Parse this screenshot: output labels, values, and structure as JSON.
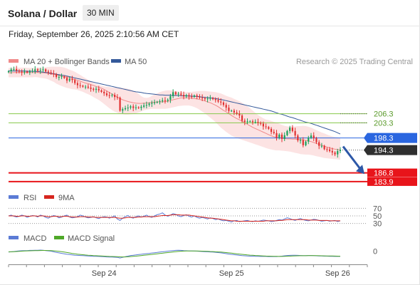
{
  "header": {
    "title": "Solana / Dollar",
    "interval": "30 MIN",
    "datetime": "Friday, September 26, 2025 2:10:56 AM CET"
  },
  "colors": {
    "candle_up": "#18a058",
    "candle_down": "#e03030",
    "ma20": "#f08a8a",
    "bollinger_fill": "#fbdcdc",
    "ma50": "#34599a",
    "green_level": "#86c84a",
    "blue_level": "#2a66e0",
    "red_level": "#e8141a",
    "current_price_bg": "#2f2f2f",
    "arrow": "#2d58a8",
    "rsi": "#5b7bd5",
    "rsi_9ma": "#d6261f",
    "macd": "#5b7bd5",
    "macd_signal": "#4fa829"
  },
  "chart_data": [
    {
      "type": "candlestick",
      "legend": [
        {
          "name": "MA 20 + Bollinger Bands",
          "color": "#f08a8a"
        },
        {
          "name": "MA 50",
          "color": "#34599a"
        }
      ],
      "legend_position": "top-left",
      "credit": "Research © 2025 Trading Central",
      "ylim": [
        182,
        221
      ],
      "x_tick_labels": [
        "Sep 24",
        "Sep 25",
        "Sep 26"
      ],
      "current_price": 194.3,
      "levels": [
        {
          "value": 206.3,
          "label": "206.3",
          "kind": "resistance",
          "color": "#86c84a"
        },
        {
          "value": 203.3,
          "label": "203.3",
          "kind": "resistance",
          "color": "#86c84a"
        },
        {
          "value": 198.3,
          "label": "198.3",
          "kind": "pivot",
          "color": "#2a66e0"
        },
        {
          "value": 186.8,
          "label": "186.8",
          "kind": "support",
          "color": "#e8141a"
        },
        {
          "value": 183.9,
          "label": "183.9",
          "kind": "support",
          "color": "#e8141a"
        }
      ],
      "forecast_arrow": {
        "from": 195.5,
        "to": 186.4
      },
      "close": [
        220.3,
        220.9,
        221.0,
        220.5,
        220.2,
        219.9,
        220.2,
        219.9,
        220.2,
        220.4,
        220.9,
        220.5,
        220.7,
        220.9,
        220.2,
        219.9,
        219.6,
        219.3,
        218.4,
        218.4,
        218.6,
        218.1,
        217.2,
        217.7,
        217.4,
        216.4,
        215.7,
        215.5,
        215.2,
        215.2,
        214.9,
        214.5,
        214.2,
        214.5,
        214.0,
        213.5,
        213.0,
        212.4,
        212.3,
        212.5,
        211.8,
        211.6,
        207.3,
        207.8,
        208.1,
        208.3,
        208.7,
        208.2,
        208.4,
        208.2,
        208.6,
        209.0,
        209.2,
        209.6,
        209.9,
        210.0,
        210.2,
        210.4,
        210.7,
        210.6,
        210.9,
        212.1,
        213.4,
        212.7,
        212.9,
        212.5,
        212.0,
        212.4,
        212.0,
        211.9,
        212.3,
        211.9,
        211.6,
        211.4,
        211.1,
        211.3,
        211.5,
        211.1,
        210.8,
        210.3,
        210.0,
        209.2,
        208.3,
        207.2,
        207.3,
        206.7,
        206.3,
        205.7,
        204.0,
        203.6,
        203.8,
        203.8,
        203.5,
        203.6,
        203.3,
        203.0,
        202.1,
        201.9,
        201.3,
        200.3,
        199.9,
        198.4,
        199.4,
        198.0,
        199.2,
        200.6,
        201.7,
        200.6,
        199.1,
        197.5,
        197.6,
        195.9,
        197.1,
        198.4,
        199.1,
        198.2,
        196.9,
        195.7,
        195.7,
        194.6,
        194.5,
        194.0,
        193.5,
        192.9,
        194.0,
        194.3
      ],
      "ma20": [
        219.8,
        219.8,
        219.9,
        219.9,
        219.9,
        219.9,
        219.9,
        219.9,
        219.9,
        219.9,
        219.9,
        219.9,
        219.8,
        219.8,
        219.7,
        219.6,
        219.4,
        219.3,
        219.1,
        218.9,
        218.7,
        218.5,
        218.3,
        218.1,
        217.8,
        217.6,
        217.3,
        217.0,
        216.7,
        216.4,
        216.2,
        215.9,
        215.6,
        215.3,
        215.0,
        214.7,
        214.3,
        213.8,
        213.3,
        212.8,
        212.3,
        211.8,
        211.3,
        210.9,
        210.6,
        210.3,
        210.1,
        209.9,
        209.8,
        209.7,
        209.7,
        209.8,
        209.8,
        209.9,
        210.0,
        210.1,
        210.2,
        210.2,
        210.2,
        210.3,
        210.4,
        210.6,
        210.9,
        211.1,
        211.3,
        211.5,
        211.5,
        211.5,
        211.5,
        211.4,
        211.3,
        211.2,
        211.0,
        210.8,
        210.5,
        210.2,
        209.9,
        209.5,
        209.1,
        208.6,
        208.0,
        207.4,
        206.9,
        206.3,
        205.7,
        205.2,
        204.7,
        204.3,
        203.8,
        203.3,
        202.8,
        202.3,
        201.8,
        201.4,
        201.0,
        200.6,
        200.2,
        199.8,
        199.4,
        199.0,
        198.7,
        198.5,
        198.3,
        198.2,
        198.1,
        198.0,
        198.0,
        197.9,
        197.9,
        197.8,
        197.8,
        197.7,
        197.5,
        197.3,
        197.1,
        196.8,
        196.5,
        196.2,
        195.9,
        195.6,
        195.3,
        195.0,
        194.8,
        194.6,
        194.5,
        194.3
      ],
      "bollinger_upper": [
        221.4,
        221.4,
        221.5,
        221.5,
        221.5,
        221.5,
        221.5,
        221.4,
        221.4,
        221.4,
        221.4,
        221.4,
        221.5,
        221.5,
        221.6,
        221.7,
        221.8,
        221.8,
        221.8,
        221.8,
        221.7,
        221.5,
        221.2,
        220.8,
        220.5,
        220.1,
        219.6,
        219.1,
        218.5,
        218.0,
        217.5,
        217.0,
        216.5,
        216.1,
        215.8,
        215.5,
        215.3,
        215.2,
        215.1,
        214.9,
        214.9,
        214.9,
        214.9,
        214.8,
        214.7,
        214.5,
        214.3,
        213.9,
        213.4,
        212.8,
        212.1,
        211.6,
        211.5,
        211.7,
        212.2,
        212.6,
        213.0,
        213.4,
        213.7,
        213.9,
        214.0,
        214.0,
        213.9,
        213.7,
        213.6,
        213.5,
        213.4,
        213.4,
        213.4,
        213.5,
        213.6,
        213.7,
        213.8,
        213.8,
        213.8,
        213.7,
        213.6,
        213.5,
        213.4,
        213.2,
        213.0,
        212.6,
        212.2,
        211.9,
        211.6,
        211.2,
        210.8,
        210.4,
        209.9,
        209.3,
        208.7,
        208.1,
        207.3,
        206.6,
        205.9,
        205.3,
        204.8,
        204.4,
        204.2,
        203.9,
        203.6,
        203.3,
        203.0,
        202.6,
        202.3,
        202.1,
        202.0,
        202.1,
        202.1,
        202.2,
        202.2,
        202.3,
        202.2,
        202.0,
        201.7,
        201.3,
        200.9,
        200.5,
        200.1,
        199.8,
        199.4,
        199.1,
        198.8,
        198.6,
        198.5,
        198.4
      ],
      "bollinger_lower": [
        218.3,
        218.3,
        218.3,
        218.3,
        218.3,
        218.3,
        218.3,
        218.3,
        218.3,
        218.3,
        218.4,
        218.3,
        218.1,
        218.0,
        217.9,
        217.6,
        217.2,
        216.8,
        216.2,
        215.8,
        215.4,
        215.1,
        214.8,
        214.6,
        214.4,
        214.3,
        214.1,
        213.8,
        213.5,
        213.1,
        212.7,
        212.3,
        211.8,
        211.3,
        210.8,
        210.2,
        209.5,
        208.8,
        208.1,
        207.5,
        207.0,
        206.6,
        206.3,
        206.1,
        206.0,
        206.0,
        206.1,
        206.2,
        206.4,
        206.7,
        207.0,
        207.4,
        207.6,
        207.8,
        207.9,
        207.9,
        207.9,
        207.9,
        207.9,
        207.9,
        208.0,
        208.2,
        208.4,
        208.6,
        208.8,
        208.9,
        209.0,
        209.0,
        209.0,
        208.8,
        208.5,
        208.1,
        207.6,
        207.0,
        206.4,
        205.7,
        205.0,
        204.3,
        203.5,
        202.6,
        201.7,
        201.0,
        200.3,
        199.7,
        199.1,
        198.6,
        198.3,
        198.0,
        197.7,
        197.4,
        197.1,
        196.8,
        196.5,
        196.2,
        195.9,
        195.6,
        195.3,
        195.0,
        194.7,
        194.5,
        194.3,
        194.2,
        194.2,
        194.1,
        194.0,
        193.9,
        193.8,
        193.6,
        193.4,
        193.2,
        193.0,
        192.9,
        192.8,
        192.8,
        192.7,
        192.5,
        192.3,
        192.1,
        191.9,
        191.7,
        191.6,
        191.5,
        191.4,
        191.3,
        191.2,
        191.1
      ],
      "ma50": [
        220.4,
        220.4,
        220.4,
        220.4,
        220.4,
        220.4,
        220.4,
        220.3,
        220.3,
        220.3,
        220.2,
        220.2,
        220.1,
        220.0,
        219.9,
        219.8,
        219.6,
        219.5,
        219.3,
        219.2,
        219.0,
        218.9,
        218.7,
        218.5,
        218.3,
        218.1,
        217.9,
        217.7,
        217.5,
        217.3,
        217.1,
        216.9,
        216.7,
        216.5,
        216.3,
        216.1,
        215.9,
        215.7,
        215.5,
        215.3,
        215.1,
        214.9,
        214.7,
        214.5,
        214.3,
        214.1,
        213.9,
        213.7,
        213.5,
        213.4,
        213.3,
        213.1,
        213.0,
        212.9,
        212.8,
        212.7,
        212.6,
        212.5,
        212.5,
        212.4,
        212.4,
        212.4,
        212.3,
        212.3,
        212.3,
        212.2,
        212.2,
        212.2,
        212.1,
        212.1,
        212.0,
        212.0,
        211.9,
        211.8,
        211.7,
        211.6,
        211.5,
        211.4,
        211.3,
        211.1,
        211.0,
        210.8,
        210.6,
        210.4,
        210.2,
        210.0,
        209.8,
        209.6,
        209.4,
        209.2,
        209.0,
        208.8,
        208.6,
        208.4,
        208.2,
        208.0,
        207.8,
        207.6,
        207.4,
        207.2,
        206.9,
        206.6,
        206.3,
        206.1,
        205.8,
        205.5,
        205.2,
        205.0,
        204.7,
        204.4,
        204.1,
        203.8,
        203.5,
        203.3,
        203.1,
        202.8,
        202.5,
        202.2,
        201.9,
        201.6,
        201.3,
        201.0,
        200.7,
        200.4,
        200.0,
        199.6
      ]
    },
    {
      "type": "line",
      "legend": [
        {
          "name": "RSI",
          "color": "#5b7bd5"
        },
        {
          "name": "9MA",
          "color": "#d6261f"
        }
      ],
      "legend_position": "top-left",
      "ylim": [
        20,
        80
      ],
      "y_ticks": [
        30,
        50,
        70
      ],
      "rsi": [
        50,
        52,
        49,
        47,
        49,
        52,
        50,
        46,
        49,
        51,
        50,
        47,
        52,
        50,
        46,
        44,
        48,
        51,
        49,
        45,
        47,
        50,
        52,
        47,
        45,
        46,
        48,
        52,
        50,
        47,
        45,
        46,
        48,
        45,
        43,
        46,
        48,
        47,
        44,
        47,
        50,
        42,
        38,
        44,
        48,
        51,
        46,
        44,
        48,
        50,
        47,
        49,
        52,
        48,
        46,
        50,
        53,
        55,
        58,
        52,
        49,
        52,
        56,
        54,
        50,
        48,
        51,
        53,
        49,
        47,
        50,
        46,
        44,
        46,
        44,
        42,
        45,
        43,
        40,
        42,
        39,
        37,
        38,
        36,
        34,
        37,
        38,
        35,
        36,
        37,
        38,
        36,
        35,
        37,
        36,
        37,
        39,
        38,
        37,
        35,
        36,
        38,
        40,
        39,
        42,
        45,
        43,
        40,
        38,
        41,
        43,
        40,
        38,
        37,
        39,
        41,
        40,
        38,
        36,
        37,
        38,
        36,
        37,
        38,
        35,
        37
      ],
      "rsi_9ma": [
        50,
        50,
        50,
        49,
        49,
        50,
        50,
        49,
        49,
        50,
        50,
        49,
        50,
        50,
        49,
        48,
        48,
        49,
        49,
        48,
        48,
        49,
        49,
        48,
        47,
        47,
        47,
        48,
        48,
        48,
        47,
        47,
        47,
        46,
        46,
        46,
        46,
        46,
        46,
        46,
        46,
        45,
        44,
        44,
        45,
        46,
        46,
        46,
        46,
        47,
        47,
        48,
        48,
        48,
        48,
        48,
        49,
        50,
        51,
        51,
        51,
        52,
        53,
        53,
        53,
        52,
        52,
        52,
        52,
        51,
        50,
        49,
        48,
        47,
        46,
        45,
        44,
        44,
        43,
        42,
        41,
        40,
        39,
        38,
        37,
        37,
        36,
        36,
        36,
        36,
        36,
        36,
        36,
        36,
        36,
        36,
        36,
        37,
        37,
        37,
        37,
        37,
        38,
        38,
        39,
        40,
        40,
        40,
        40,
        40,
        40,
        40,
        40,
        39,
        39,
        39,
        39,
        38,
        38,
        38,
        38,
        37,
        37,
        37,
        37,
        37
      ]
    },
    {
      "type": "line",
      "legend": [
        {
          "name": "MACD",
          "color": "#5b7bd5"
        },
        {
          "name": "MACD Signal",
          "color": "#4fa829"
        }
      ],
      "legend_position": "top-left",
      "ylim": [
        -3.8,
        2.2
      ],
      "y_ticks": [
        0
      ],
      "macd": [
        -0.3,
        -0.2,
        -0.1,
        0.0,
        0.1,
        0.15,
        0.2,
        0.2,
        0.25,
        0.25,
        0.3,
        0.3,
        0.35,
        0.3,
        0.2,
        0.1,
        0.0,
        -0.2,
        -0.4,
        -0.55,
        -0.7,
        -0.85,
        -1.0,
        -1.1,
        -1.2,
        -1.3,
        -1.35,
        -1.4,
        -1.45,
        -1.5,
        -1.55,
        -1.6,
        -1.65,
        -1.65,
        -1.7,
        -1.75,
        -1.8,
        -1.85,
        -1.9,
        -1.9,
        -1.95,
        -2.0,
        -2.2,
        -2.0,
        -1.8,
        -1.6,
        -1.4,
        -1.3,
        -1.2,
        -1.1,
        -1.0,
        -0.9,
        -0.8,
        -0.7,
        -0.6,
        -0.5,
        -0.4,
        -0.3,
        -0.2,
        -0.1,
        0.0,
        0.1,
        0.2,
        0.25,
        0.3,
        0.25,
        0.2,
        0.15,
        0.1,
        0.1,
        0.05,
        0.0,
        -0.05,
        -0.1,
        -0.15,
        -0.2,
        -0.25,
        -0.3,
        -0.35,
        -0.45,
        -0.55,
        -0.65,
        -0.8,
        -0.95,
        -1.05,
        -1.15,
        -1.25,
        -1.35,
        -1.45,
        -1.5,
        -1.55,
        -1.6,
        -1.6,
        -1.65,
        -1.65,
        -1.7,
        -1.7,
        -1.7,
        -1.75,
        -1.75,
        -1.75,
        -1.75,
        -1.7,
        -1.6,
        -1.5,
        -1.4,
        -1.35,
        -1.3,
        -1.3,
        -1.35,
        -1.4,
        -1.45,
        -1.45,
        -1.4,
        -1.4,
        -1.45,
        -1.5,
        -1.55,
        -1.55,
        -1.6,
        -1.6,
        -1.65,
        -1.65,
        -1.7,
        -1.7,
        -1.7
      ],
      "macd_signal": [
        -0.2,
        -0.2,
        -0.15,
        -0.1,
        -0.05,
        0.0,
        0.05,
        0.1,
        0.12,
        0.15,
        0.18,
        0.2,
        0.22,
        0.24,
        0.24,
        0.22,
        0.18,
        0.12,
        0.04,
        -0.06,
        -0.18,
        -0.3,
        -0.44,
        -0.58,
        -0.72,
        -0.85,
        -0.96,
        -1.06,
        -1.15,
        -1.23,
        -1.3,
        -1.36,
        -1.42,
        -1.47,
        -1.52,
        -1.57,
        -1.61,
        -1.65,
        -1.69,
        -1.72,
        -1.75,
        -1.78,
        -1.84,
        -1.87,
        -1.86,
        -1.82,
        -1.75,
        -1.68,
        -1.6,
        -1.52,
        -1.43,
        -1.34,
        -1.25,
        -1.15,
        -1.05,
        -0.95,
        -0.85,
        -0.75,
        -0.65,
        -0.55,
        -0.45,
        -0.35,
        -0.25,
        -0.16,
        -0.08,
        -0.02,
        0.02,
        0.05,
        0.06,
        0.07,
        0.07,
        0.06,
        0.04,
        0.01,
        -0.02,
        -0.06,
        -0.1,
        -0.14,
        -0.19,
        -0.24,
        -0.3,
        -0.37,
        -0.45,
        -0.54,
        -0.64,
        -0.74,
        -0.84,
        -0.94,
        -1.04,
        -1.13,
        -1.21,
        -1.28,
        -1.34,
        -1.4,
        -1.45,
        -1.5,
        -1.54,
        -1.58,
        -1.61,
        -1.64,
        -1.66,
        -1.68,
        -1.69,
        -1.69,
        -1.67,
        -1.64,
        -1.6,
        -1.56,
        -1.52,
        -1.49,
        -1.47,
        -1.46,
        -1.46,
        -1.45,
        -1.44,
        -1.44,
        -1.45,
        -1.47,
        -1.49,
        -1.51,
        -1.53,
        -1.55,
        -1.57,
        -1.59,
        -1.61,
        -1.63
      ]
    }
  ]
}
